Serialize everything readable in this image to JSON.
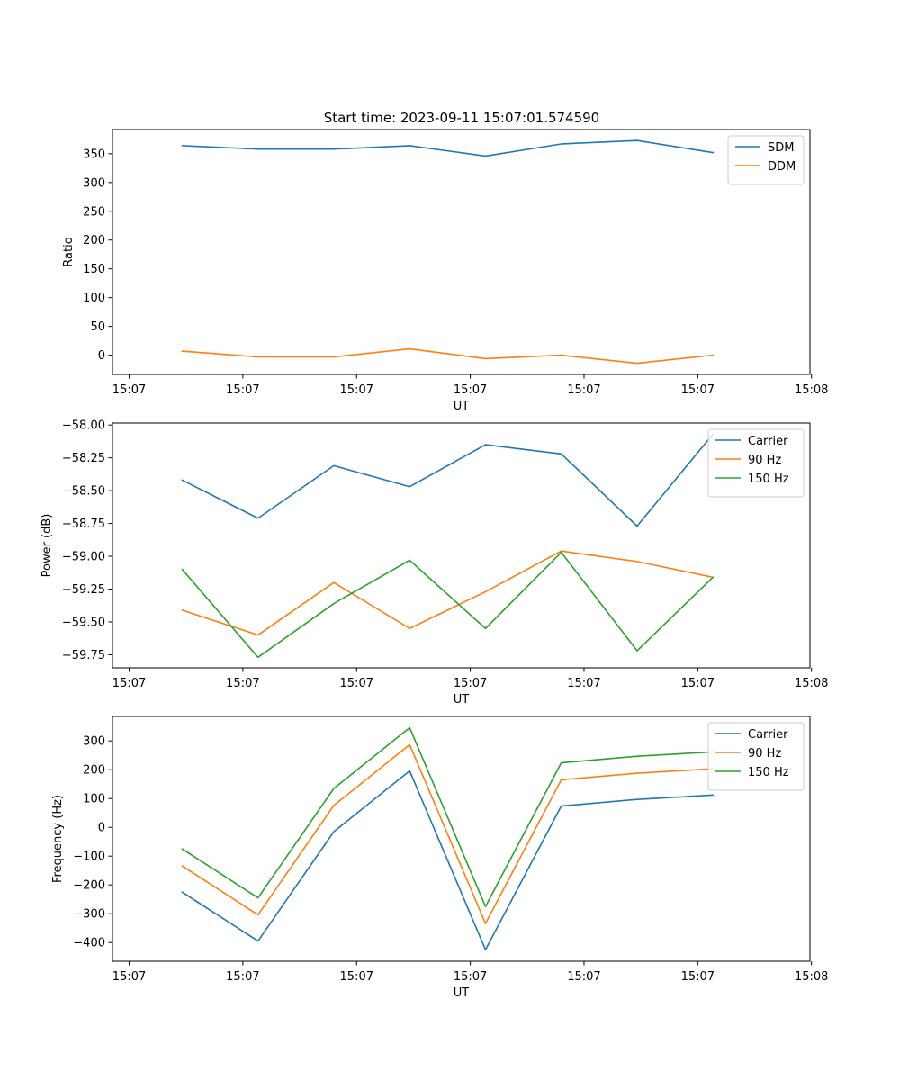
{
  "figure_title": "Start time: 2023-09-11 15:07:01.574590",
  "colors": {
    "blue": "#1f77b4",
    "orange": "#ff7f0e",
    "green": "#2ca02c",
    "axis": "#000000",
    "legend_edge": "#cccccc"
  },
  "chart_data": [
    {
      "type": "line",
      "title": "Start time: 2023-09-11 15:07:01.574590",
      "xlabel": "UT",
      "ylabel": "Ratio",
      "xlim": [
        -0.36,
        4.24
      ],
      "ylim": [
        -33.5,
        392
      ],
      "x_ticks": [
        -0.25,
        0.5,
        1.25,
        2.0,
        2.75,
        3.5,
        4.25
      ],
      "x_tick_labels": [
        "15:07",
        "15:07",
        "15:07",
        "15:07",
        "15:07",
        "15:07",
        "15:08"
      ],
      "y_ticks": [
        0,
        50,
        100,
        150,
        200,
        250,
        300,
        350
      ],
      "y_tick_labels": [
        "0",
        "50",
        "100",
        "150",
        "200",
        "250",
        "300",
        "350"
      ],
      "legend_position": "upper right",
      "x": [
        0.1,
        0.6,
        1.1,
        1.6,
        2.1,
        2.6,
        3.1,
        3.6
      ],
      "series": [
        {
          "name": "SDM",
          "color": "#1f77b4",
          "values": [
            364,
            358,
            358,
            364,
            346,
            367,
            373,
            352
          ]
        },
        {
          "name": "DDM",
          "color": "#ff7f0e",
          "values": [
            7,
            -3,
            -3,
            11,
            -6,
            0,
            -14,
            0
          ]
        }
      ]
    },
    {
      "type": "line",
      "xlabel": "UT",
      "ylabel": "Power (dB)",
      "xlim": [
        -0.36,
        4.24
      ],
      "ylim": [
        -59.85,
        -57.985
      ],
      "x_ticks": [
        -0.25,
        0.5,
        1.25,
        2.0,
        2.75,
        3.5,
        4.25
      ],
      "x_tick_labels": [
        "15:07",
        "15:07",
        "15:07",
        "15:07",
        "15:07",
        "15:07",
        "15:08"
      ],
      "y_ticks": [
        -59.75,
        -59.5,
        -59.25,
        -59.0,
        -58.75,
        -58.5,
        -58.25,
        -58.0
      ],
      "y_tick_labels": [
        "−59.75",
        "−59.50",
        "−59.25",
        "−59.00",
        "−58.75",
        "−58.50",
        "−58.25",
        "−58.00"
      ],
      "legend_position": "upper right",
      "x": [
        0.1,
        0.6,
        1.1,
        1.6,
        2.1,
        2.6,
        3.1,
        3.6
      ],
      "series": [
        {
          "name": "Carrier",
          "color": "#1f77b4",
          "values": [
            -58.42,
            -58.71,
            -58.31,
            -58.47,
            -58.15,
            -58.22,
            -58.77,
            -58.07
          ]
        },
        {
          "name": "90 Hz",
          "color": "#ff7f0e",
          "values": [
            -59.41,
            -59.6,
            -59.2,
            -59.55,
            -59.27,
            -58.96,
            -59.04,
            -59.16
          ]
        },
        {
          "name": "150 Hz",
          "color": "#2ca02c",
          "values": [
            -59.1,
            -59.77,
            -59.36,
            -59.03,
            -59.55,
            -58.97,
            -59.72,
            -59.16
          ]
        }
      ]
    },
    {
      "type": "line",
      "xlabel": "UT",
      "ylabel": "Frequency (Hz)",
      "xlim": [
        -0.36,
        4.24
      ],
      "ylim": [
        -465,
        385
      ],
      "x_ticks": [
        -0.25,
        0.5,
        1.25,
        2.0,
        2.75,
        3.5,
        4.25
      ],
      "x_tick_labels": [
        "15:07",
        "15:07",
        "15:07",
        "15:07",
        "15:07",
        "15:07",
        "15:08"
      ],
      "y_ticks": [
        -400,
        -300,
        -200,
        -100,
        0,
        100,
        200,
        300
      ],
      "y_tick_labels": [
        "−400",
        "−300",
        "−200",
        "−100",
        "0",
        "100",
        "200",
        "300"
      ],
      "legend_position": "upper right",
      "x": [
        0.1,
        0.6,
        1.1,
        1.6,
        2.1,
        2.6,
        3.1,
        3.6
      ],
      "series": [
        {
          "name": "Carrier",
          "color": "#1f77b4",
          "values": [
            -225,
            -395,
            -15,
            196,
            -425,
            74,
            97,
            112
          ]
        },
        {
          "name": "90 Hz",
          "color": "#ff7f0e",
          "values": [
            -134,
            -304,
            76,
            287,
            -334,
            165,
            188,
            203
          ]
        },
        {
          "name": "150 Hz",
          "color": "#2ca02c",
          "values": [
            -75,
            -245,
            135,
            346,
            -275,
            224,
            247,
            262
          ]
        }
      ]
    }
  ]
}
